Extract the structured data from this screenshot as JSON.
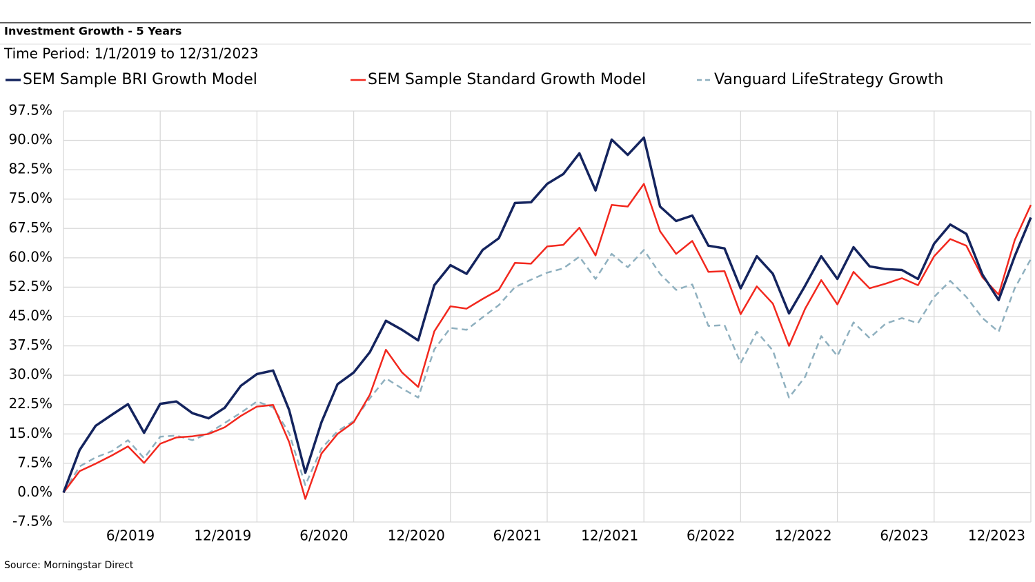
{
  "chart_data": {
    "type": "line",
    "title": "Investment Growth - 5 Years",
    "subtitle": "Time Period: 1/1/2019 to 12/31/2023",
    "source": "Source: Morningstar Direct",
    "categories": [
      null,
      null,
      null,
      null,
      null,
      null,
      "6/2019",
      null,
      null,
      null,
      null,
      null,
      "12/2019",
      null,
      null,
      null,
      null,
      null,
      "6/2020",
      null,
      null,
      null,
      null,
      null,
      "12/2020",
      null,
      null,
      null,
      null,
      null,
      "6/2021",
      null,
      null,
      null,
      null,
      null,
      "12/2021",
      null,
      null,
      null,
      null,
      null,
      "6/2022",
      null,
      null,
      null,
      null,
      null,
      "12/2022",
      null,
      null,
      null,
      null,
      null,
      "6/2023",
      null,
      null,
      null,
      null,
      null,
      "12/2023"
    ],
    "series": [
      {
        "name": "SEM Sample BRI Growth Model",
        "color": "#14245e",
        "line_style": "solid",
        "values": [
          0,
          10.9,
          17.1,
          19.9,
          22.6,
          15.3,
          22.7,
          23.3,
          20.3,
          19.0,
          21.7,
          27.3,
          30.3,
          31.2,
          21.1,
          5.1,
          18.0,
          27.7,
          30.7,
          35.9,
          43.9,
          41.6,
          38.9,
          53.0,
          58.1,
          55.9,
          62.0,
          65.0,
          74.0,
          74.2,
          78.9,
          81.4,
          86.7,
          77.2,
          90.2,
          86.3,
          90.7,
          73.1,
          69.4,
          70.8,
          63.1,
          62.4,
          52.2,
          60.4,
          55.9,
          45.8,
          52.9,
          60.4,
          54.6,
          62.7,
          57.8,
          57.1,
          56.9,
          54.6,
          63.6,
          68.5,
          66.1,
          55.7,
          49.2,
          60.4,
          70.3
        ]
      },
      {
        "name": "SEM Sample Standard Growth Model",
        "color": "#f2281e",
        "line_style": "solid",
        "values": [
          0,
          5.5,
          7.4,
          9.5,
          11.8,
          7.6,
          12.5,
          14.1,
          14.4,
          15.0,
          16.7,
          19.6,
          22.0,
          22.4,
          12.9,
          -1.6,
          10.0,
          15.0,
          18.0,
          25.0,
          36.5,
          30.7,
          27.0,
          41.2,
          47.6,
          47.0,
          49.5,
          51.8,
          58.7,
          58.5,
          62.9,
          63.3,
          67.7,
          60.6,
          73.5,
          73.1,
          78.9,
          66.8,
          61.0,
          64.3,
          56.4,
          56.6,
          45.6,
          52.7,
          48.3,
          37.5,
          47.0,
          54.3,
          48.1,
          56.4,
          52.2,
          53.4,
          54.8,
          53.0,
          60.4,
          64.8,
          63.1,
          55.0,
          50.6,
          64.5,
          73.5
        ]
      },
      {
        "name": "Vanguard LifeStrategy Growth",
        "color": "#8fb0bf",
        "line_style": "dashed",
        "values": [
          0,
          6.7,
          9.0,
          10.6,
          13.4,
          8.8,
          14.3,
          14.6,
          13.4,
          15.2,
          17.8,
          20.4,
          23.3,
          21.8,
          15.2,
          1.9,
          11.3,
          15.7,
          18.3,
          24.1,
          29.2,
          26.6,
          24.3,
          36.6,
          42.1,
          41.6,
          44.8,
          47.9,
          52.5,
          54.4,
          56.2,
          57.3,
          60.3,
          54.6,
          61.0,
          57.6,
          62.0,
          55.9,
          51.8,
          53.2,
          42.6,
          42.8,
          33.1,
          41.1,
          36.3,
          24.3,
          29.6,
          40.0,
          34.9,
          43.5,
          39.5,
          43.2,
          44.6,
          43.3,
          50.0,
          54.1,
          50.0,
          44.6,
          41.1,
          52.2,
          59.7
        ]
      }
    ],
    "ylim": [
      -7.5,
      97.5
    ],
    "yticks": [
      {
        "value": -7.5,
        "label": "-7.5%"
      },
      {
        "value": 0,
        "label": "0.0%"
      },
      {
        "value": 7.5,
        "label": "7.5%"
      },
      {
        "value": 15,
        "label": "15.0%"
      },
      {
        "value": 22.5,
        "label": "22.5%"
      },
      {
        "value": 30,
        "label": "30.0%"
      },
      {
        "value": 37.5,
        "label": "37.5%"
      },
      {
        "value": 45,
        "label": "45.0%"
      },
      {
        "value": 52.5,
        "label": "52.5%"
      },
      {
        "value": 60,
        "label": "60.0%"
      },
      {
        "value": 67.5,
        "label": "67.5%"
      },
      {
        "value": 75,
        "label": "75.0%"
      },
      {
        "value": 82.5,
        "label": "82.5%"
      },
      {
        "value": 90,
        "label": "90.0%"
      },
      {
        "value": 97.5,
        "label": "97.5%"
      }
    ],
    "grid": true
  }
}
